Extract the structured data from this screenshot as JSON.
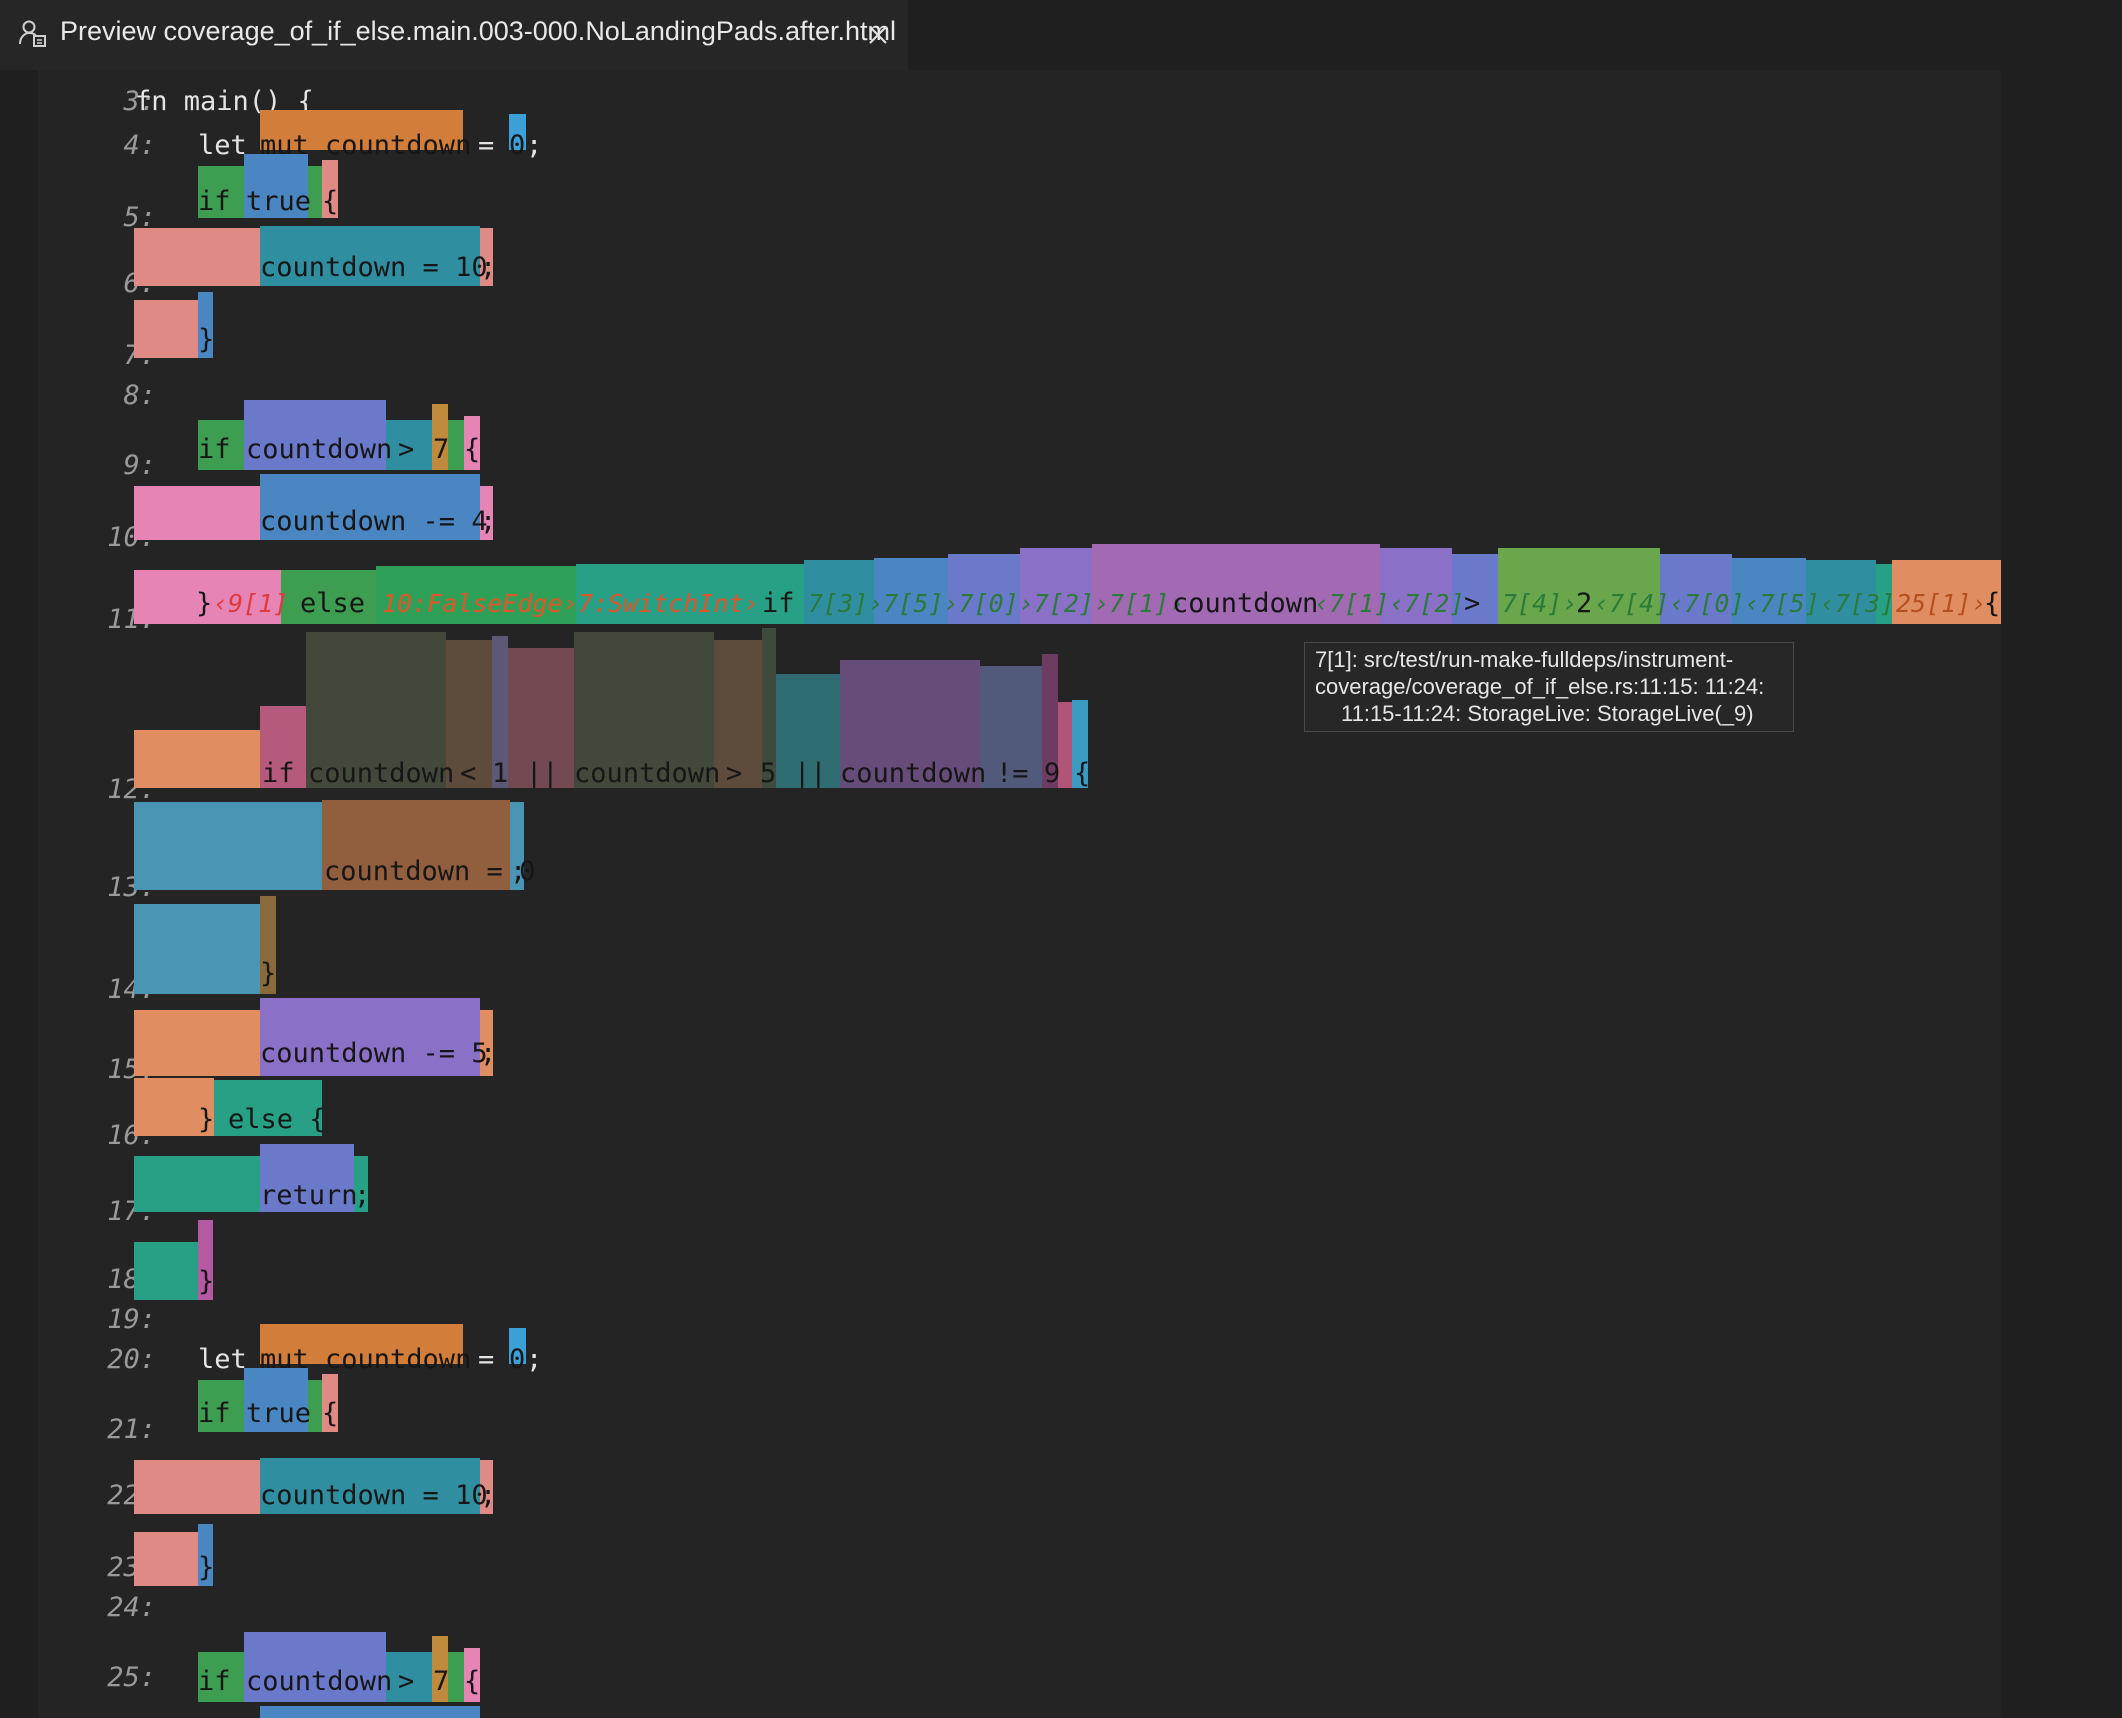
{
  "tab": {
    "title": "Preview coverage_of_if_else.main.003-000.NoLandingPads.after.html",
    "preview_icon": "preview-icon",
    "close_icon": "close-icon"
  },
  "line_numbers": [
    "3:",
    "4:",
    "5:",
    "6:",
    "7:",
    "8:",
    "9:",
    "10:",
    "11:",
    "12:",
    "13:",
    "14:",
    "15:",
    "16:",
    "17:",
    "18:",
    "19:",
    "20:",
    "21:",
    "22:",
    "23:",
    "24:",
    "25:"
  ],
  "code": {
    "l3": "fn main() {",
    "l4_let": "let",
    "l4_mut": "mut countdown",
    "l4_eq": "=",
    "l4_zero": "0",
    "l4_semi": ";",
    "l5_if": "if",
    "l5_true": "true",
    "l5_brace": "{",
    "l6_stmt": "countdown = 10",
    "l6_semi": ";",
    "l7_brace": "}",
    "l9_if": "if",
    "l9_countdown": "countdown",
    "l9_gt": ">",
    "l9_seven": "7",
    "l9_brace": "{",
    "l10_stmt": "countdown -= 4",
    "l10_semi": ";",
    "l11_close": "}",
    "l11_else": "else",
    "l11_if": "if",
    "l11_countdown": "countdown",
    "l11_gt": ">",
    "l11_two": "2",
    "l11_brace": "{",
    "l12_if": "if",
    "l12_c1": "countdown",
    "l12_lt": "<",
    "l12_one": "1",
    "l12_or1": "||",
    "l12_c2": "countdown",
    "l12_gt": ">",
    "l12_five": "5",
    "l12_or2": "||",
    "l12_c3": "countdown",
    "l12_ne": "!=",
    "l12_nine": "9",
    "l12_brace": "{",
    "l13_stmt": "countdown = 0",
    "l13_semi": ";",
    "l14_brace": "}",
    "l15_stmt": "countdown -= 5",
    "l15_semi": ";",
    "l16_close": "}",
    "l16_else": "else {",
    "l17_return": "return",
    "l17_semi": ";",
    "l18_brace": "}",
    "l20_let": "let",
    "l20_mut": "mut countdown",
    "l20_eq": "=",
    "l20_zero": "0",
    "l20_semi": ";",
    "l21_if": "if",
    "l21_true": "true",
    "l21_brace": "{",
    "l22_stmt": "countdown = 10",
    "l22_semi": ";",
    "l23_brace": "}",
    "l25_if": "if",
    "l25_countdown": "countdown",
    "l25_gt": ">",
    "l25_seven": "7",
    "l25_brace": "{"
  },
  "labels": {
    "l11_a": "‹9[1]",
    "l11_b": "10:FalseEdge›",
    "l11_c": "7:SwitchInt›",
    "l11_d": "7[3]›7[5]›7[0]›7[2]›7[1]›",
    "l11_e": "‹7[1]‹7[2]",
    "l11_f": "7[4]›",
    "l11_g": "‹7[4]‹7[0]‹7[5]‹7[3]",
    "l11_h": "25[1]›"
  },
  "tooltip": {
    "line1": "7[1]: src/test/run-make-fulldeps/instrument-",
    "line2": "coverage/coverage_of_if_else.rs:11:15: 11:24:",
    "line3": "11:15-11:24: StorageLive: StorageLive(_9)"
  },
  "colors": {
    "background": "#242424",
    "tab_background": "#262626",
    "line_number": "#9a9a9a",
    "green": "#3d9e52",
    "blue": "#4a86c1",
    "salmon": "#e08a86",
    "teal": "#2f8fa0",
    "orange": "#d27d3a",
    "pink": "#e684b6",
    "violet": "#7c72c9",
    "purple": "#a36ab4",
    "light_green": "#6aa64c",
    "sea_green": "#27a085",
    "peach": "#e08d62",
    "brown": "#915e3e"
  }
}
